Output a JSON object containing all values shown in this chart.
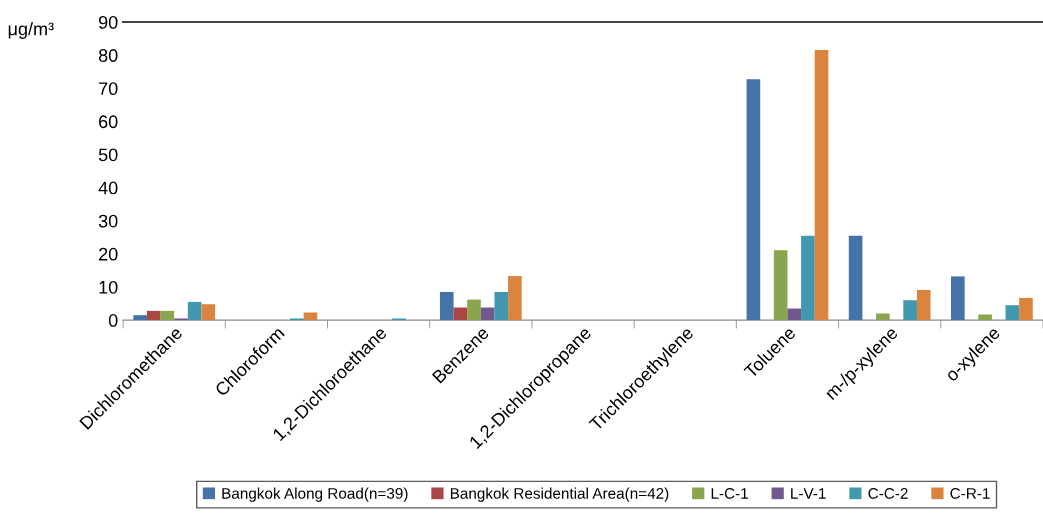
{
  "chart_data": {
    "type": "bar",
    "ylabel": "μg/m³",
    "categories": [
      "Dichloromethane",
      "Chloroform",
      "1,2-Dichloroethane",
      "Benzene",
      "1,2-Dichloropropane",
      "Trichloroethylene",
      "Toluene",
      "m-/p-xylene",
      "o-xylene"
    ],
    "series": [
      {
        "name": "Bangkok Along Road(n=39)",
        "color": "#4572a7",
        "values": [
          1.5,
          0,
          0,
          8.5,
          0,
          0,
          72.7,
          25.5,
          13.2
        ]
      },
      {
        "name": "Bangkok Residential Area(n=42)",
        "color": "#aa4643",
        "values": [
          2.8,
          0,
          0,
          3.8,
          0,
          0,
          0,
          0,
          0
        ]
      },
      {
        "name": "L-C-1",
        "color": "#89a54e",
        "values": [
          2.8,
          0,
          0,
          6.2,
          0,
          0,
          21.1,
          2.0,
          1.7
        ]
      },
      {
        "name": "L-V-1",
        "color": "#71588f",
        "values": [
          0.5,
          0,
          0,
          3.8,
          0,
          0,
          3.5,
          0,
          0
        ]
      },
      {
        "name": "C-C-2",
        "color": "#4198af",
        "values": [
          5.5,
          0.5,
          0.5,
          8.5,
          0,
          0,
          25.5,
          6.0,
          4.5
        ]
      },
      {
        "name": "C-R-1",
        "color": "#db843d",
        "values": [
          4.8,
          2.3,
          0,
          13.3,
          0,
          0,
          81.6,
          9.1,
          6.7
        ]
      }
    ],
    "ylim": [
      0,
      90
    ],
    "yticks": [
      0,
      10,
      20,
      30,
      40,
      50,
      60,
      70,
      80,
      90
    ],
    "grid": false,
    "legend": "bottom"
  }
}
